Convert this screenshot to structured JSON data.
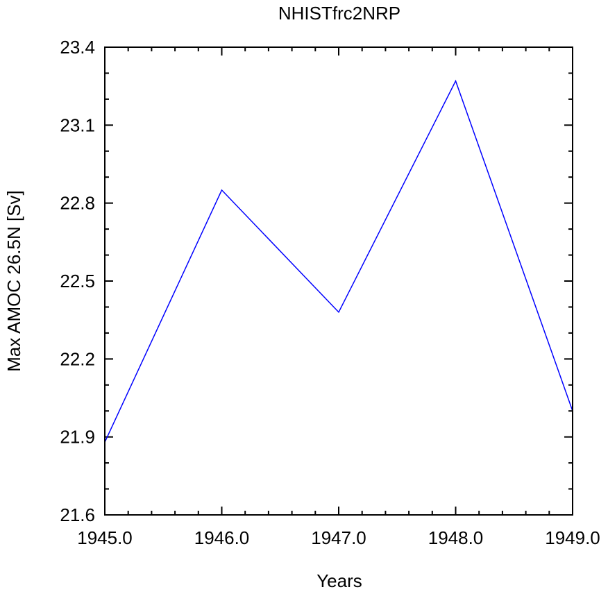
{
  "chart_data": {
    "type": "line",
    "title": "NHISTfrc2NRP",
    "xlabel": "Years",
    "ylabel": "Max AMOC 26.5N [Sv]",
    "xlim": [
      1945.0,
      1949.0
    ],
    "ylim": [
      21.6,
      23.4
    ],
    "x_ticks": [
      "1945.0",
      "1946.0",
      "1947.0",
      "1948.0",
      "1949.0"
    ],
    "y_ticks": [
      "21.6",
      "21.9",
      "22.2",
      "22.5",
      "22.8",
      "23.1",
      "23.4"
    ],
    "x_minor_step": 0.2,
    "y_minor_step": 0.1,
    "grid": false,
    "legend": "none",
    "series": [
      {
        "color": "#0000ff",
        "x": [
          1945.0,
          1946.0,
          1947.0,
          1948.0,
          1949.0
        ],
        "y": [
          21.88,
          22.85,
          22.38,
          23.27,
          22.0
        ]
      }
    ]
  }
}
